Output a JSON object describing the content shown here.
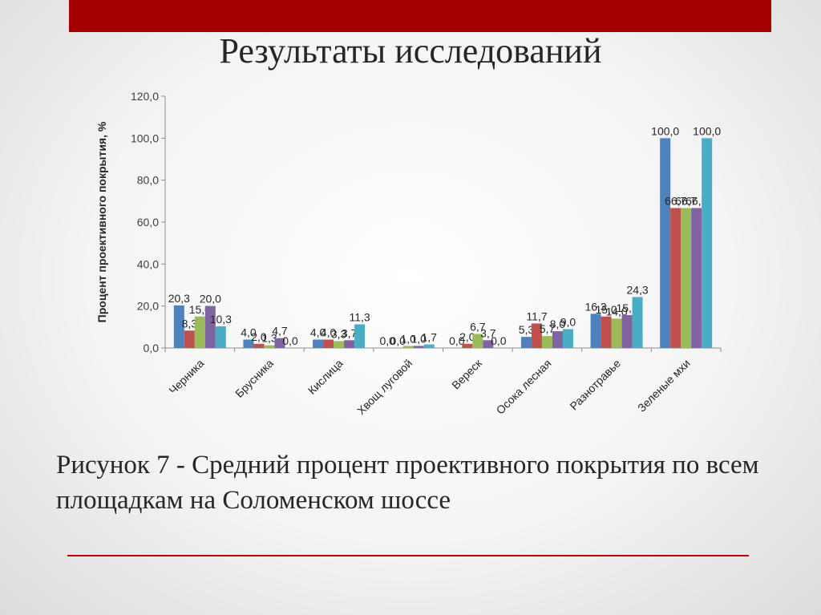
{
  "slide": {
    "title": "Результаты исследований",
    "caption": "Рисунок 7 - Средний процент проективного покрытия по всем площадкам на Соломенском шоссе",
    "accent_color": "#a50000",
    "line_color": "#c00000"
  },
  "chart_data": {
    "type": "bar",
    "title": "",
    "xlabel": "",
    "ylabel": "Процент проективного покрытия, %",
    "ylim": [
      0,
      120
    ],
    "yticks": [
      "0,0",
      "20,0",
      "40,0",
      "60,0",
      "80,0",
      "100,0",
      "120,0"
    ],
    "grid": false,
    "legend": "none",
    "categories": [
      "Черника",
      "Брусника",
      "Кислица",
      "Хвощ луговой",
      "Вереск",
      "Осока лесная",
      "Разнотравье",
      "Зеленые мхи"
    ],
    "colors": [
      "#4f81bd",
      "#c0504d",
      "#9bbb59",
      "#8064a2",
      "#4bacc6"
    ],
    "series": [
      {
        "values": [
          20.3,
          4.0,
          4.0,
          0.0,
          0.0,
          5.3,
          16.3,
          100.0
        ],
        "labels": [
          "20,3",
          "4,0",
          "4,0",
          "0,0",
          "0,0",
          "5,3",
          "16,3",
          "100,0"
        ]
      },
      {
        "values": [
          8.3,
          2.0,
          4.0,
          0.0,
          2.0,
          11.7,
          15.0,
          66.7
        ],
        "labels": [
          "8,3",
          "2,0",
          "4,0",
          "0,0",
          "2,0",
          "11,7",
          "15,0",
          "66,7"
        ]
      },
      {
        "values": [
          15.0,
          1.3,
          3.3,
          1.0,
          6.7,
          5.7,
          14.0,
          66.7
        ],
        "labels": [
          "15,0",
          "1,3",
          "3,3",
          "1,0",
          "6,7",
          "5,7",
          "14,0",
          "66,7"
        ]
      },
      {
        "values": [
          20.0,
          4.7,
          3.7,
          1.0,
          3.7,
          8.0,
          15.7,
          66.7
        ],
        "labels": [
          "20,0",
          "4,7",
          "3,7",
          "1,0",
          "3,7",
          "8,0",
          "15,7",
          "66,7"
        ]
      },
      {
        "values": [
          10.3,
          0.0,
          11.3,
          1.7,
          0.0,
          9.0,
          24.3,
          100.0
        ],
        "labels": [
          "10,3",
          "0,0",
          "11,3",
          "1,7",
          "0,0",
          "9,0",
          "24,3",
          "100,0"
        ]
      }
    ]
  }
}
